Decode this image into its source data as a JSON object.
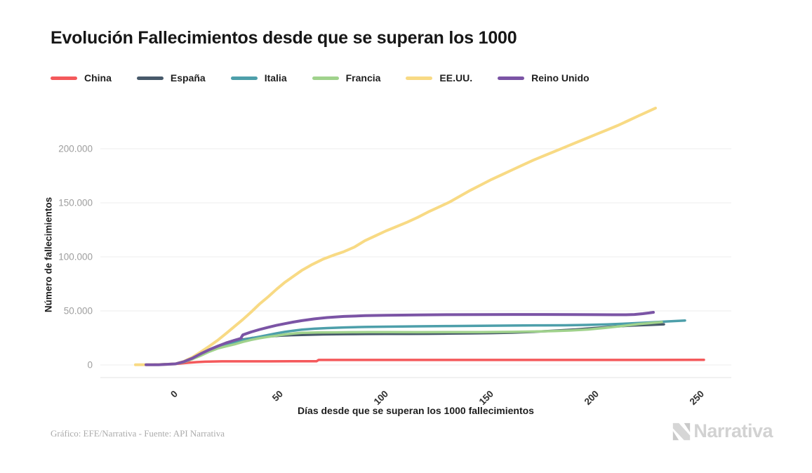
{
  "footer": {
    "credit": "Gráfico: EFE/Narrativa - Fuente: API Narrativa"
  },
  "logo": {
    "text": "Narrativa"
  },
  "legend": [
    {
      "id": "china",
      "label": "China",
      "color": "#f4595b"
    },
    {
      "id": "espana",
      "label": "España",
      "color": "#47596a"
    },
    {
      "id": "italia",
      "label": "Italia",
      "color": "#4d9faa"
    },
    {
      "id": "francia",
      "label": "Francia",
      "color": "#a0d28c"
    },
    {
      "id": "eeuu",
      "label": "EE.UU.",
      "color": "#f8da84"
    },
    {
      "id": "reino-unido",
      "label": "Reino Unido",
      "color": "#7b54a5"
    }
  ],
  "chart_data": {
    "type": "line",
    "title": "Evolución Fallecimientos desde que se superan los 1000",
    "xlabel": "Días desde que se superan los 1000 fallecimientos",
    "ylabel": "Número de fallecimientos",
    "xlim": [
      -36,
      264
    ],
    "ylim": [
      -12000,
      246000
    ],
    "grid": "horizontal",
    "legend_position": "top-left",
    "x_ticks": [
      {
        "value": 0,
        "label": "0"
      },
      {
        "value": 50,
        "label": "50"
      },
      {
        "value": 100,
        "label": "100"
      },
      {
        "value": 150,
        "label": "150"
      },
      {
        "value": 200,
        "label": "200"
      },
      {
        "value": 250,
        "label": "250"
      }
    ],
    "y_ticks": [
      {
        "value": 0,
        "label": "0"
      },
      {
        "value": 50000,
        "label": "50.000"
      },
      {
        "value": 100000,
        "label": "100.000"
      },
      {
        "value": 150000,
        "label": "150.000"
      },
      {
        "value": 200000,
        "label": "200.000"
      }
    ],
    "series": [
      {
        "id": "china",
        "name": "China",
        "color": "#f4595b",
        "width": 3.5,
        "points": [
          [
            -5,
            700
          ],
          [
            0,
            1000
          ],
          [
            3,
            1400
          ],
          [
            6,
            2000
          ],
          [
            10,
            2600
          ],
          [
            14,
            3000
          ],
          [
            18,
            3200
          ],
          [
            22,
            3280
          ],
          [
            26,
            3310
          ],
          [
            35,
            3330
          ],
          [
            45,
            3340
          ],
          [
            55,
            3345
          ],
          [
            67,
            3346
          ],
          [
            68,
            4634
          ],
          [
            80,
            4634
          ],
          [
            100,
            4634
          ],
          [
            130,
            4634
          ],
          [
            160,
            4634
          ],
          [
            190,
            4634
          ],
          [
            220,
            4640
          ],
          [
            251,
            4700
          ]
        ]
      },
      {
        "id": "espana",
        "name": "España",
        "color": "#47596a",
        "width": 3.5,
        "points": [
          [
            -10,
            300
          ],
          [
            0,
            1000
          ],
          [
            4,
            3000
          ],
          [
            8,
            6000
          ],
          [
            12,
            9500
          ],
          [
            16,
            13500
          ],
          [
            20,
            16500
          ],
          [
            24,
            19500
          ],
          [
            28,
            21800
          ],
          [
            32,
            23500
          ],
          [
            36,
            24800
          ],
          [
            40,
            25700
          ],
          [
            45,
            26500
          ],
          [
            50,
            27100
          ],
          [
            55,
            27500
          ],
          [
            60,
            27800
          ],
          [
            70,
            28250
          ],
          [
            80,
            28500
          ],
          [
            90,
            28650
          ],
          [
            100,
            28720
          ],
          [
            110,
            28750
          ],
          [
            120,
            28850
          ],
          [
            130,
            29000
          ],
          [
            140,
            29200
          ],
          [
            150,
            29500
          ],
          [
            160,
            29900
          ],
          [
            170,
            30600
          ],
          [
            180,
            31600
          ],
          [
            190,
            32800
          ],
          [
            200,
            34200
          ],
          [
            210,
            35700
          ],
          [
            218,
            36500
          ],
          [
            226,
            37100
          ],
          [
            232,
            37600
          ]
        ]
      },
      {
        "id": "italia",
        "name": "Italia",
        "color": "#4d9faa",
        "width": 3.5,
        "points": [
          [
            -8,
            300
          ],
          [
            0,
            1000
          ],
          [
            4,
            2700
          ],
          [
            8,
            5500
          ],
          [
            12,
            9000
          ],
          [
            16,
            12700
          ],
          [
            20,
            15900
          ],
          [
            24,
            18800
          ],
          [
            28,
            21100
          ],
          [
            32,
            23000
          ],
          [
            36,
            24700
          ],
          [
            40,
            26200
          ],
          [
            44,
            27700
          ],
          [
            48,
            29200
          ],
          [
            52,
            30600
          ],
          [
            56,
            31700
          ],
          [
            60,
            32600
          ],
          [
            66,
            33500
          ],
          [
            72,
            34100
          ],
          [
            80,
            34700
          ],
          [
            90,
            35100
          ],
          [
            100,
            35400
          ],
          [
            115,
            35700
          ],
          [
            130,
            36000
          ],
          [
            145,
            36200
          ],
          [
            160,
            36400
          ],
          [
            175,
            36600
          ],
          [
            185,
            36700
          ],
          [
            195,
            37000
          ],
          [
            205,
            37500
          ],
          [
            215,
            38300
          ],
          [
            225,
            39300
          ],
          [
            233,
            40200
          ],
          [
            242,
            41100
          ]
        ]
      },
      {
        "id": "francia",
        "name": "Francia",
        "color": "#a0d28c",
        "width": 3.5,
        "points": [
          [
            -8,
            400
          ],
          [
            0,
            1000
          ],
          [
            4,
            2600
          ],
          [
            8,
            5400
          ],
          [
            12,
            8600
          ],
          [
            16,
            12200
          ],
          [
            20,
            15200
          ],
          [
            24,
            17200
          ],
          [
            28,
            19000
          ],
          [
            32,
            21300
          ],
          [
            36,
            23200
          ],
          [
            40,
            24750
          ],
          [
            44,
            26000
          ],
          [
            48,
            27100
          ],
          [
            52,
            28200
          ],
          [
            56,
            29000
          ],
          [
            60,
            29700
          ],
          [
            68,
            30000
          ],
          [
            76,
            30150
          ],
          [
            84,
            30250
          ],
          [
            92,
            30300
          ],
          [
            100,
            30300
          ],
          [
            115,
            30250
          ],
          [
            130,
            30300
          ],
          [
            145,
            30400
          ],
          [
            160,
            30600
          ],
          [
            170,
            30900
          ],
          [
            180,
            31300
          ],
          [
            188,
            31900
          ],
          [
            196,
            32800
          ],
          [
            204,
            34200
          ],
          [
            212,
            36000
          ],
          [
            220,
            37800
          ],
          [
            226,
            38800
          ],
          [
            231,
            39700
          ]
        ]
      },
      {
        "id": "eeuu",
        "name": "EE.UU.",
        "color": "#f8da84",
        "width": 4,
        "points": [
          [
            -19,
            100
          ],
          [
            -10,
            250
          ],
          [
            -5,
            500
          ],
          [
            0,
            1000
          ],
          [
            4,
            3300
          ],
          [
            8,
            7000
          ],
          [
            12,
            12000
          ],
          [
            16,
            17200
          ],
          [
            20,
            22700
          ],
          [
            24,
            29000
          ],
          [
            28,
            35500
          ],
          [
            32,
            42000
          ],
          [
            36,
            49000
          ],
          [
            40,
            56500
          ],
          [
            44,
            63000
          ],
          [
            48,
            70000
          ],
          [
            52,
            76500
          ],
          [
            56,
            82000
          ],
          [
            60,
            87500
          ],
          [
            65,
            93000
          ],
          [
            70,
            97800
          ],
          [
            75,
            101500
          ],
          [
            80,
            104800
          ],
          [
            85,
            109000
          ],
          [
            90,
            115000
          ],
          [
            95,
            119500
          ],
          [
            100,
            124000
          ],
          [
            105,
            128000
          ],
          [
            110,
            132000
          ],
          [
            115,
            136500
          ],
          [
            120,
            141500
          ],
          [
            125,
            146000
          ],
          [
            130,
            150500
          ],
          [
            135,
            156000
          ],
          [
            140,
            161500
          ],
          [
            145,
            166500
          ],
          [
            150,
            171500
          ],
          [
            155,
            176000
          ],
          [
            160,
            180500
          ],
          [
            165,
            185000
          ],
          [
            170,
            189500
          ],
          [
            175,
            193500
          ],
          [
            180,
            197500
          ],
          [
            185,
            201500
          ],
          [
            190,
            205500
          ],
          [
            195,
            209500
          ],
          [
            200,
            213500
          ],
          [
            205,
            217500
          ],
          [
            210,
            221500
          ],
          [
            215,
            226000
          ],
          [
            220,
            230500
          ],
          [
            224,
            234000
          ],
          [
            228,
            237600
          ]
        ]
      },
      {
        "id": "reino-unido",
        "name": "Reino Unido",
        "color": "#7b54a5",
        "width": 4,
        "points": [
          [
            -14,
            100
          ],
          [
            -8,
            200
          ],
          [
            0,
            1000
          ],
          [
            4,
            3000
          ],
          [
            8,
            6200
          ],
          [
            12,
            10300
          ],
          [
            16,
            14000
          ],
          [
            20,
            17300
          ],
          [
            24,
            20300
          ],
          [
            28,
            22800
          ],
          [
            31,
            24500
          ],
          [
            32,
            27800
          ],
          [
            36,
            30500
          ],
          [
            40,
            32800
          ],
          [
            44,
            34800
          ],
          [
            48,
            36600
          ],
          [
            52,
            38200
          ],
          [
            56,
            39700
          ],
          [
            60,
            41000
          ],
          [
            66,
            42600
          ],
          [
            72,
            43800
          ],
          [
            80,
            44900
          ],
          [
            90,
            45600
          ],
          [
            100,
            46000
          ],
          [
            115,
            46300
          ],
          [
            130,
            46500
          ],
          [
            145,
            46600
          ],
          [
            160,
            46700
          ],
          [
            175,
            46700
          ],
          [
            190,
            46600
          ],
          [
            200,
            46500
          ],
          [
            208,
            46400
          ],
          [
            214,
            46400
          ],
          [
            218,
            46700
          ],
          [
            222,
            47400
          ],
          [
            225,
            48100
          ],
          [
            227,
            48700
          ]
        ]
      }
    ]
  }
}
